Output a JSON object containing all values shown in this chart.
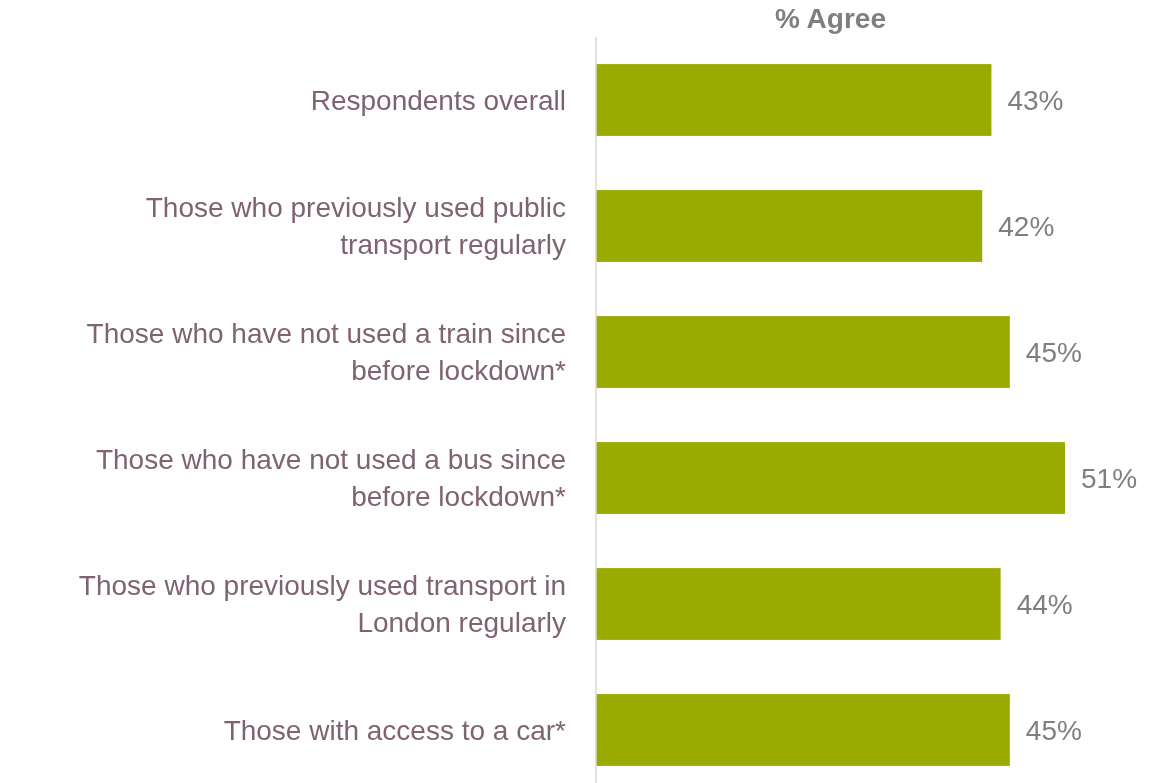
{
  "chart_data": {
    "type": "bar",
    "orientation": "horizontal",
    "title": "% Agree",
    "categories": [
      "Respondents overall",
      "Those who previously used public transport regularly",
      "Those who have not used a train since before lockdown*",
      "Those who have not used a bus since before lockdown*",
      "Those who previously used transport in London regularly",
      "Those with access to a car*"
    ],
    "values": [
      43,
      42,
      45,
      51,
      44,
      45
    ],
    "value_labels": [
      "43%",
      "42%",
      "45%",
      "51%",
      "44%",
      "45%"
    ],
    "color": "#9aaa00",
    "tick_labels": "y"
  }
}
